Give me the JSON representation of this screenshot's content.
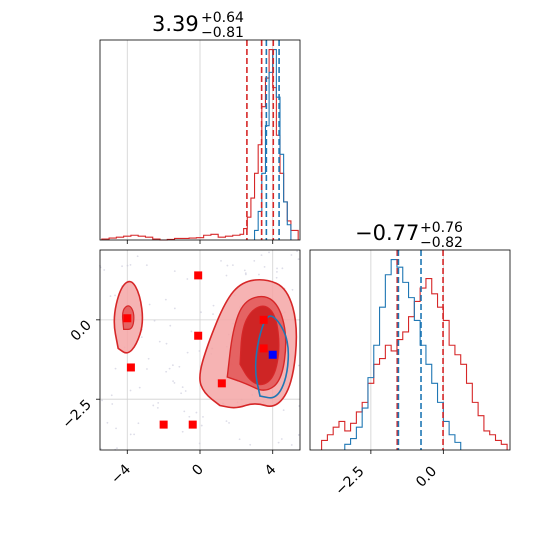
{
  "chart_data": [
    {
      "panel": "x-marginal",
      "type": "histogram",
      "title": {
        "value": "3.39",
        "plus": "+0.64",
        "minus": "−0.81"
      },
      "xlim": [
        -5.5,
        5.5
      ],
      "grid": true,
      "series": [
        {
          "color": "#d62728",
          "bin_edges": [
            -5.4,
            -5.0,
            -4.6,
            -4.2,
            -3.8,
            -3.4,
            -3.0,
            -2.6,
            -2.2,
            -1.8,
            -1.4,
            -1.0,
            -0.6,
            -0.2,
            0.2,
            0.6,
            1.0,
            1.4,
            1.8,
            2.2,
            2.4,
            2.6,
            2.8,
            3.0,
            3.2,
            3.4,
            3.6,
            3.8,
            4.0,
            4.2,
            4.4,
            4.6,
            4.8,
            5.0,
            5.4
          ],
          "heights": [
            0.5,
            1,
            1.5,
            2,
            2.5,
            2,
            1.5,
            0.5,
            0,
            0.3,
            0.8,
            0.8,
            1,
            1.2,
            2.5,
            3,
            1.5,
            2,
            2.5,
            3,
            6,
            12,
            22,
            35,
            50,
            70,
            85,
            100,
            80,
            55,
            35,
            20,
            10,
            5
          ]
        },
        {
          "color": "#1f77b4",
          "bin_edges": [
            3.0,
            3.2,
            3.4,
            3.6,
            3.8,
            4.0,
            4.2,
            4.4,
            4.6,
            4.8,
            5.0
          ],
          "heights": [
            5,
            15,
            35,
            60,
            88,
            100,
            75,
            45,
            20,
            8
          ]
        }
      ],
      "vlines": [
        {
          "x": 2.58,
          "color": "#d62728"
        },
        {
          "x": 3.39,
          "color": "#d62728"
        },
        {
          "x": 4.03,
          "color": "#d62728"
        },
        {
          "x": 3.65,
          "color": "#1f77b4"
        },
        {
          "x": 4.35,
          "color": "#1f77b4"
        }
      ]
    },
    {
      "panel": "y-marginal",
      "type": "histogram",
      "title": {
        "value": "−0.77",
        "plus": "+0.76",
        "minus": "−0.82"
      },
      "xlim": [
        -4.6,
        2.3
      ],
      "xticks": [
        "−2.5",
        "0.0"
      ],
      "xtick_values": [
        -2.5,
        0.0
      ],
      "grid": true,
      "series": [
        {
          "color": "#d62728",
          "bin_edges": [
            -4.2,
            -4.0,
            -3.8,
            -3.6,
            -3.4,
            -3.2,
            -3.0,
            -2.8,
            -2.6,
            -2.4,
            -2.2,
            -2.0,
            -1.8,
            -1.6,
            -1.4,
            -1.2,
            -1.0,
            -0.8,
            -0.6,
            -0.4,
            -0.2,
            0.0,
            0.2,
            0.4,
            0.6,
            0.8,
            1.0,
            1.2,
            1.4,
            1.6,
            1.8,
            2.0,
            2.2
          ],
          "heights": [
            5,
            8,
            12,
            15,
            10,
            14,
            20,
            25,
            35,
            45,
            48,
            55,
            52,
            58,
            62,
            70,
            78,
            85,
            90,
            82,
            75,
            68,
            55,
            50,
            45,
            35,
            25,
            18,
            10,
            8,
            5,
            3
          ]
        },
        {
          "color": "#1f77b4",
          "bin_edges": [
            -3.4,
            -3.2,
            -3.0,
            -2.8,
            -2.6,
            -2.4,
            -2.2,
            -2.0,
            -1.8,
            -1.6,
            -1.4,
            -1.2,
            -1.0,
            -0.8,
            -0.6,
            -0.4,
            -0.2,
            0.0,
            0.2,
            0.4,
            0.6
          ],
          "heights": [
            3,
            6,
            12,
            22,
            38,
            55,
            75,
            92,
            100,
            96,
            88,
            80,
            68,
            55,
            45,
            35,
            25,
            15,
            8,
            4
          ]
        }
      ],
      "vlines": [
        {
          "x": -1.59,
          "color": "#d62728"
        },
        {
          "x": -0.77,
          "color": "#1f77b4"
        },
        {
          "x": -0.01,
          "color": "#d62728"
        },
        {
          "x": -1.55,
          "color": "#1f77b4"
        }
      ]
    },
    {
      "panel": "joint",
      "type": "scatter",
      "xlim": [
        -5.5,
        5.5
      ],
      "ylim": [
        -4.1,
        2.2
      ],
      "xticks": [
        "−4",
        "0",
        "4"
      ],
      "xtick_values": [
        -4,
        0,
        4
      ],
      "yticks": [
        "0.0",
        "−2.5"
      ],
      "ytick_values": [
        0.0,
        -2.5
      ],
      "grid": true,
      "red_markers": [
        {
          "x": -4.0,
          "y": 0.05
        },
        {
          "x": -3.8,
          "y": -1.5
        },
        {
          "x": -0.1,
          "y": 1.4
        },
        {
          "x": -0.1,
          "y": -0.5
        },
        {
          "x": 1.2,
          "y": -2.0
        },
        {
          "x": -2.0,
          "y": -3.3
        },
        {
          "x": -0.4,
          "y": -3.3
        },
        {
          "x": 3.5,
          "y": -0.9
        },
        {
          "x": 3.5,
          "y": 0.0
        }
      ],
      "blue_markers": [
        {
          "x": 4.0,
          "y": -1.1
        }
      ],
      "contours": {
        "red_outer": [
          [
            1.1,
            -2.7
          ],
          [
            0.2,
            -2.3
          ],
          [
            -0.1,
            -1.8
          ],
          [
            0.4,
            -0.8
          ],
          [
            1.4,
            0.6
          ],
          [
            2.3,
            1.2
          ],
          [
            3.6,
            1.3
          ],
          [
            4.8,
            1.0
          ],
          [
            5.4,
            -0.2
          ],
          [
            5.1,
            -2.0
          ],
          [
            4.2,
            -2.8
          ],
          [
            3.0,
            -2.6
          ],
          [
            2.0,
            -2.8
          ]
        ],
        "red_mid": [
          [
            1.5,
            -1.8
          ],
          [
            1.8,
            -0.3
          ],
          [
            2.4,
            0.6
          ],
          [
            3.6,
            0.8
          ],
          [
            4.4,
            0.4
          ],
          [
            4.8,
            -0.6
          ],
          [
            4.5,
            -1.9
          ],
          [
            3.6,
            -2.3
          ],
          [
            2.5,
            -2.0
          ]
        ],
        "red_inner": [
          [
            2.2,
            -1.4
          ],
          [
            2.3,
            -0.3
          ],
          [
            2.8,
            0.3
          ],
          [
            3.6,
            0.5
          ],
          [
            4.2,
            0.1
          ],
          [
            4.4,
            -0.9
          ],
          [
            4.1,
            -1.8
          ],
          [
            3.4,
            -2.1
          ],
          [
            2.7,
            -1.9
          ]
        ],
        "red_left": [
          [
            -4.5,
            -0.9
          ],
          [
            -4.8,
            0.0
          ],
          [
            -4.4,
            1.0
          ],
          [
            -3.8,
            1.3
          ],
          [
            -3.3,
            0.8
          ],
          [
            -3.1,
            -0.1
          ],
          [
            -3.5,
            -0.8
          ],
          [
            -4.0,
            -1.1
          ]
        ],
        "red_left_inner": [
          [
            -4.2,
            -0.3
          ],
          [
            -4.3,
            0.3
          ],
          [
            -3.9,
            0.5
          ],
          [
            -3.6,
            0.2
          ],
          [
            -3.7,
            -0.3
          ]
        ],
        "blue": [
          [
            3.3,
            -2.4
          ],
          [
            3.0,
            -1.6
          ],
          [
            3.2,
            -0.6
          ],
          [
            3.7,
            0.2
          ],
          [
            4.3,
            0.0
          ],
          [
            4.9,
            -0.7
          ],
          [
            4.8,
            -1.8
          ],
          [
            4.2,
            -2.5
          ]
        ]
      }
    }
  ]
}
